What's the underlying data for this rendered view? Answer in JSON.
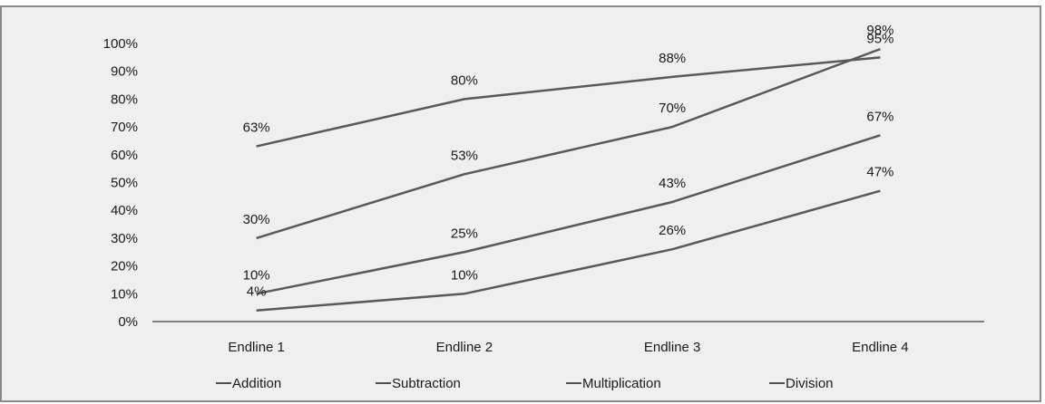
{
  "chart_data": {
    "type": "line",
    "categories": [
      "Endline 1",
      "Endline 2",
      "Endline 3",
      "Endline 4"
    ],
    "series": [
      {
        "name": "Addition",
        "values": [
          63,
          80,
          88,
          95
        ],
        "labels": [
          "63%",
          "80%",
          "88%",
          "95%"
        ]
      },
      {
        "name": "Subtraction",
        "values": [
          30,
          53,
          70,
          98
        ],
        "labels": [
          "30%",
          "53%",
          "70%",
          "98%"
        ]
      },
      {
        "name": "Multiplication",
        "values": [
          10,
          25,
          43,
          67
        ],
        "labels": [
          "10%",
          "25%",
          "43%",
          "67%"
        ]
      },
      {
        "name": "Division",
        "values": [
          4,
          10,
          26,
          47
        ],
        "labels": [
          "4%",
          "10%",
          "26%",
          "47%"
        ]
      }
    ],
    "ylim": [
      0,
      100
    ],
    "yticks": [
      "0%",
      "10%",
      "20%",
      "30%",
      "40%",
      "50%",
      "60%",
      "70%",
      "80%",
      "90%",
      "100%"
    ],
    "title": "",
    "xlabel": "",
    "ylabel": "",
    "grid": false,
    "legend_position": "bottom",
    "line_color": "#595959",
    "background_color": "#efefef"
  }
}
